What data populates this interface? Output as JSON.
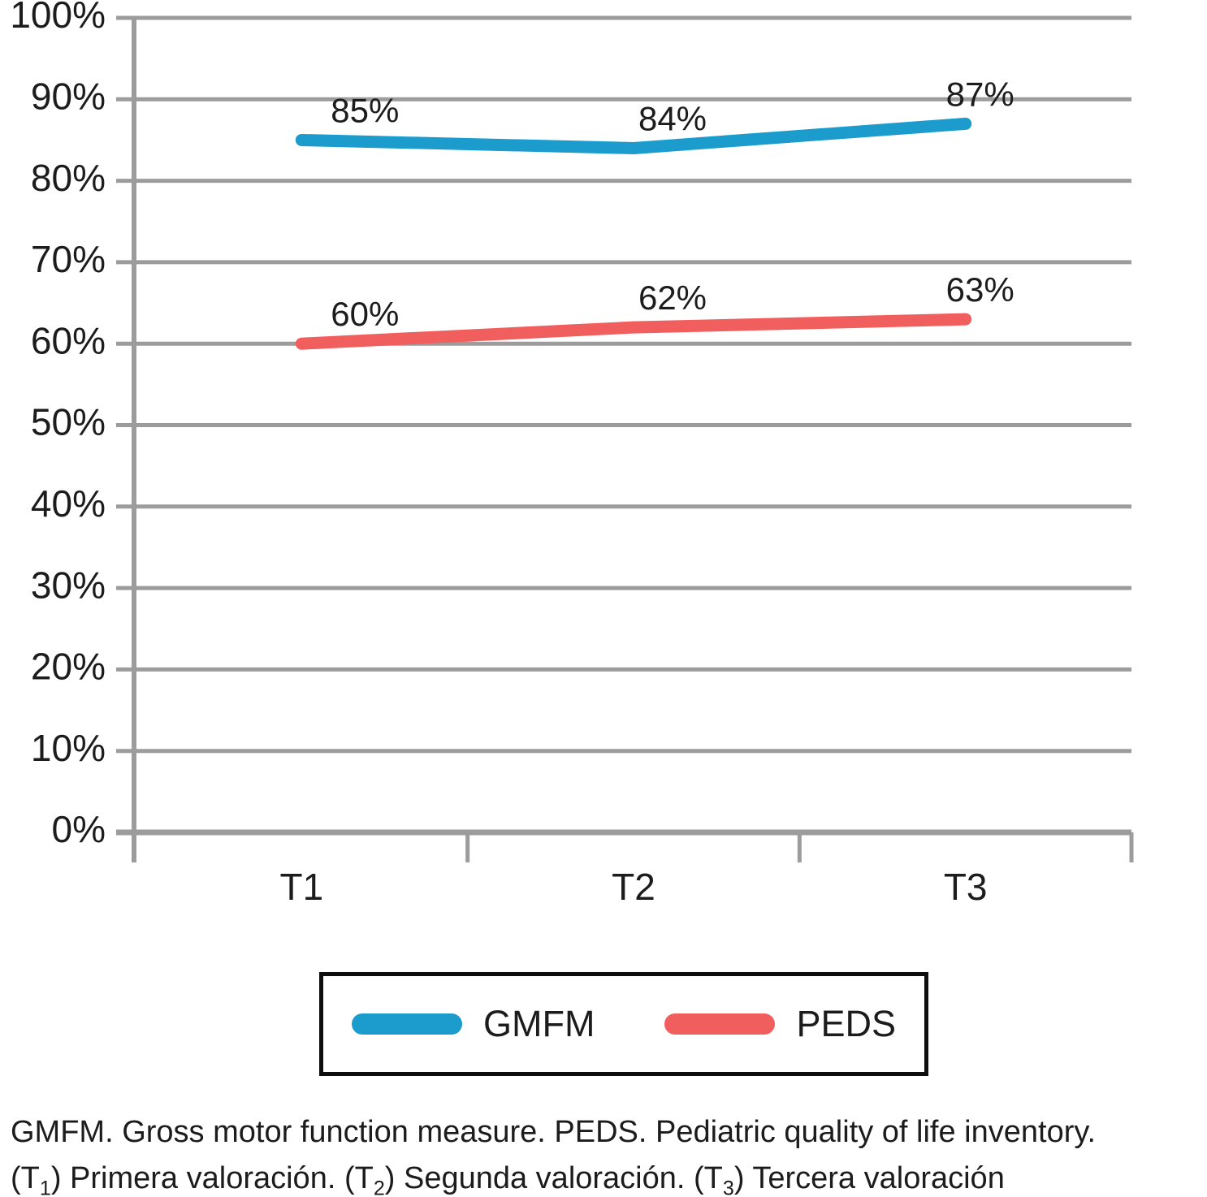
{
  "chart_data": {
    "type": "line",
    "categories": [
      "T1",
      "T2",
      "T3"
    ],
    "series": [
      {
        "name": "GMFM",
        "values": [
          85,
          84,
          87
        ],
        "point_labels": [
          "85%",
          "84%",
          "87%"
        ],
        "color": "#1b9ccd"
      },
      {
        "name": "PEDS",
        "values": [
          60,
          62,
          63
        ],
        "point_labels": [
          "60%",
          "62%",
          "63%"
        ],
        "color": "#f15e5e"
      }
    ],
    "y_ticks": [
      {
        "value": 100,
        "label": "100%"
      },
      {
        "value": 90,
        "label": "90%"
      },
      {
        "value": 80,
        "label": "80%"
      },
      {
        "value": 70,
        "label": "70%"
      },
      {
        "value": 60,
        "label": "60%"
      },
      {
        "value": 50,
        "label": "50%"
      },
      {
        "value": 40,
        "label": "40%"
      },
      {
        "value": 30,
        "label": "30%"
      },
      {
        "value": 20,
        "label": "20%"
      },
      {
        "value": 10,
        "label": "10%"
      },
      {
        "value": 0,
        "label": "0%"
      }
    ],
    "ylim": [
      0,
      100
    ],
    "grid": true,
    "legend_position": "bottom",
    "title": "",
    "xlabel": "",
    "ylabel": "",
    "colors": {
      "grid": "#9c9c9c",
      "axis": "#9c9c9c",
      "text": "#1c1c1c"
    }
  },
  "caption": {
    "line1": "GMFM. Gross motor function measure. PEDS. Pediatric quality of life inventory.",
    "line2_segments": [
      {
        "text": "(T"
      },
      {
        "sub": "1"
      },
      {
        "text": ") Primera valoración. (T"
      },
      {
        "sub": "2"
      },
      {
        "text": ") Segunda valoración. (T"
      },
      {
        "sub": "3"
      },
      {
        "text": ") Tercera valoración"
      }
    ]
  }
}
